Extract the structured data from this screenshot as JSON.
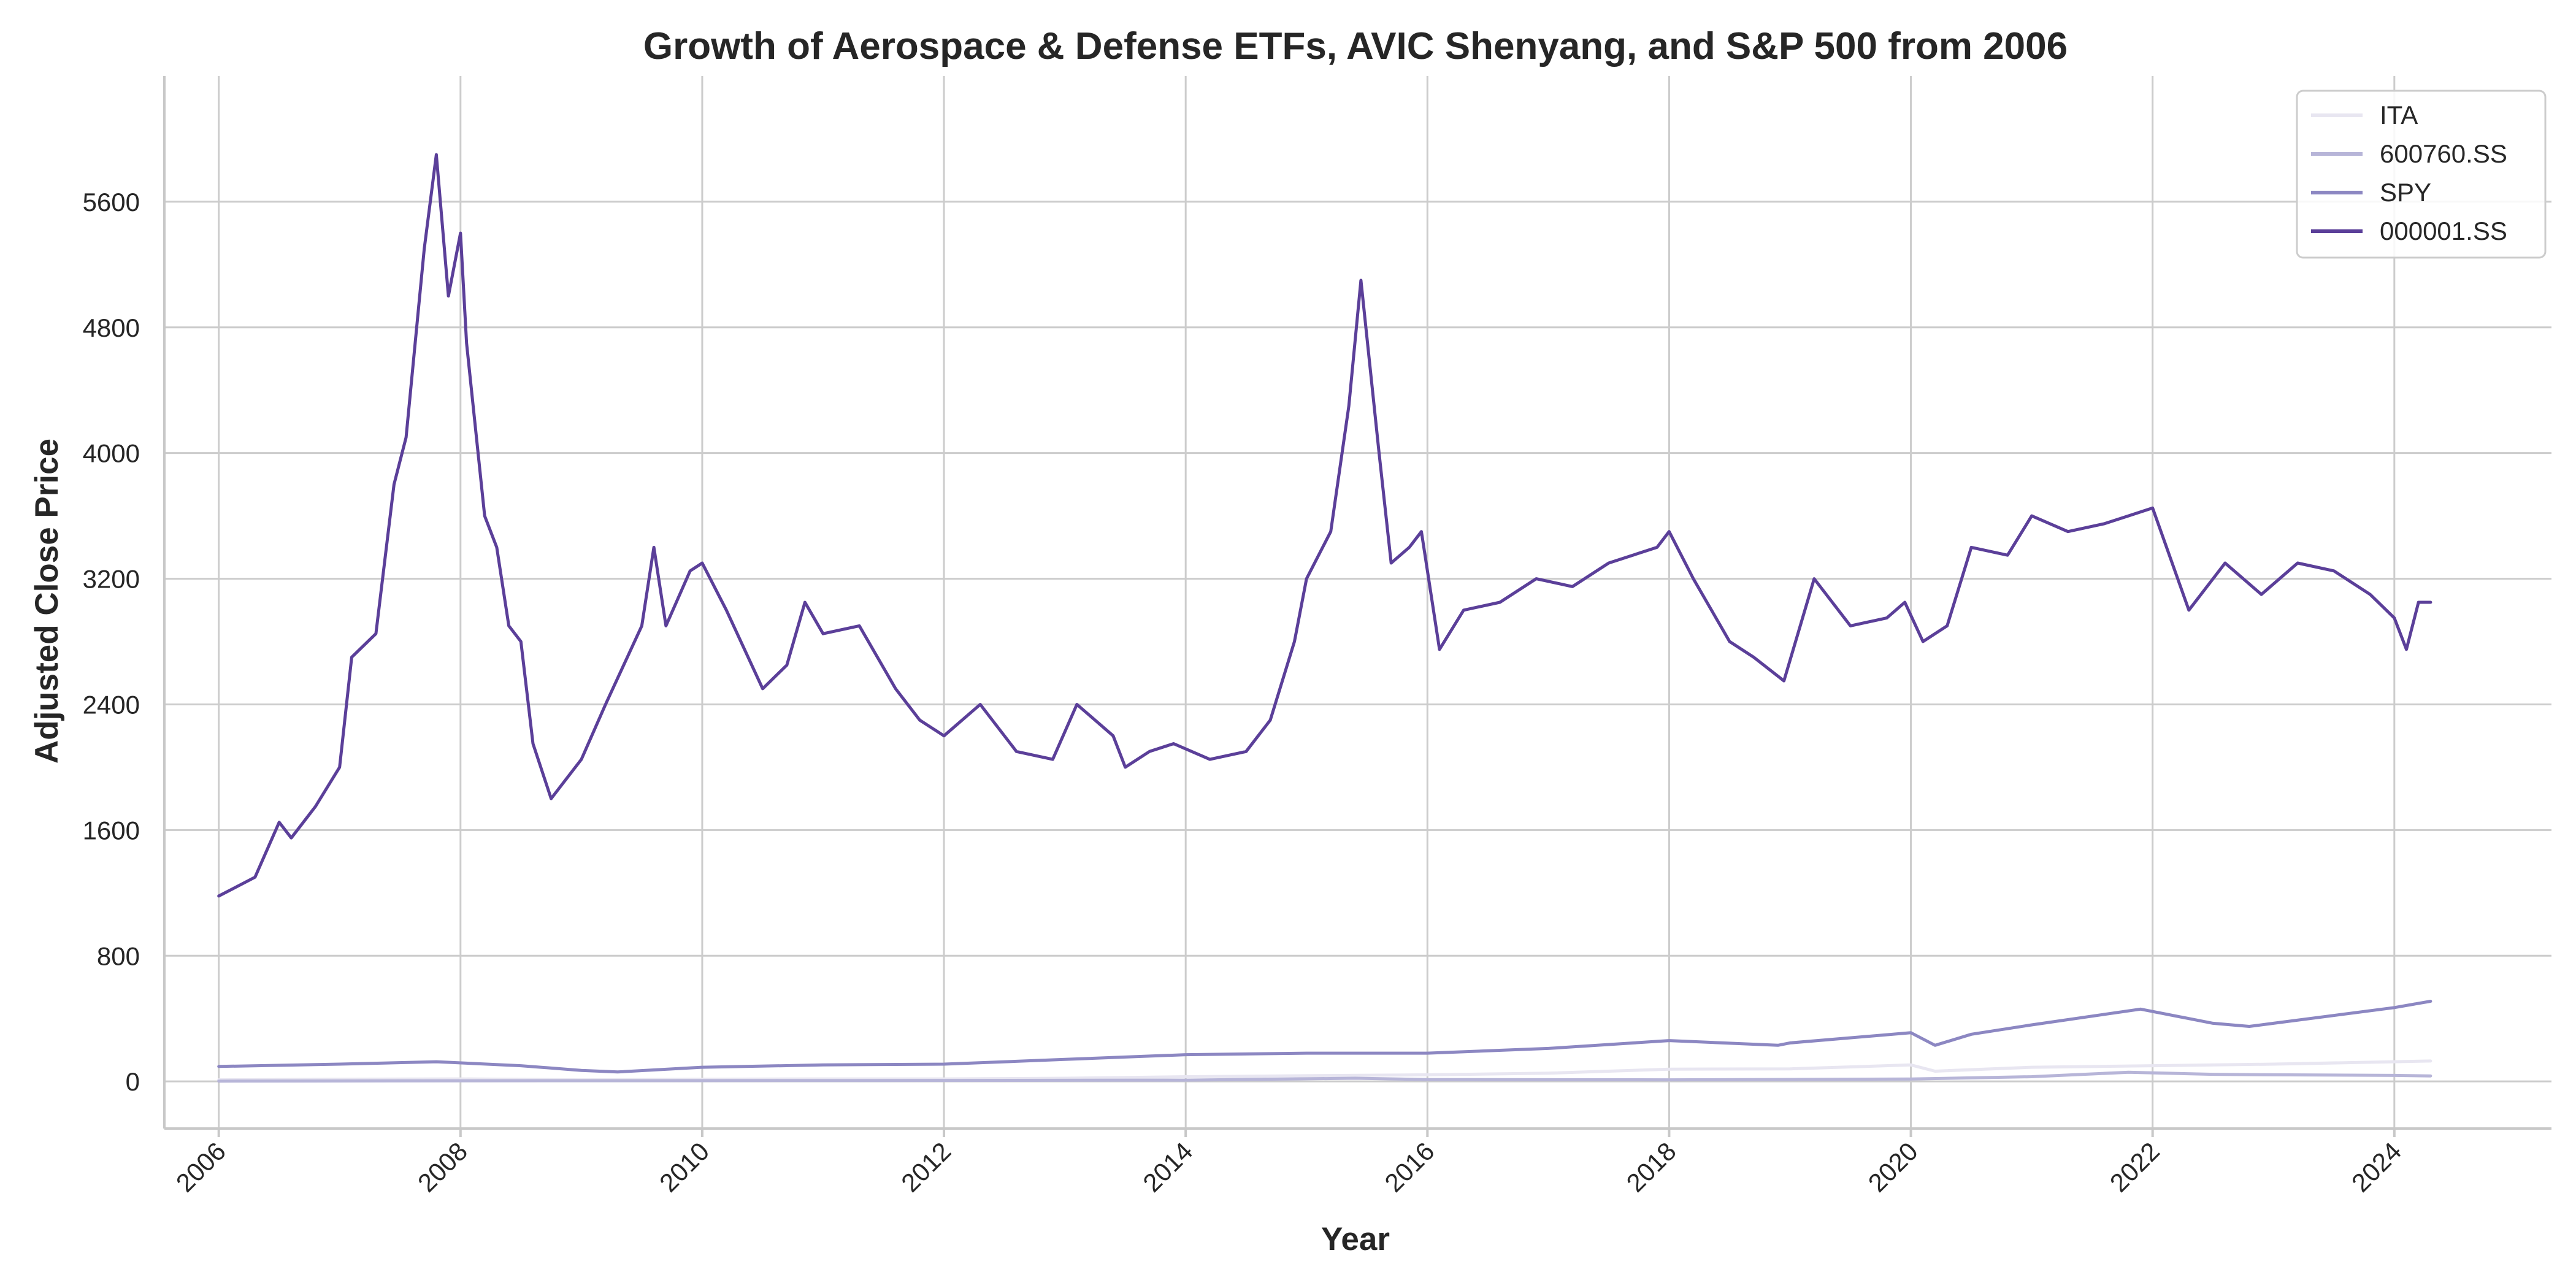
{
  "chart_data": {
    "type": "line",
    "title": "Growth of Aerospace & Defense ETFs, AVIC Shenyang, and S&P 500 from 2006",
    "xlabel": "Year",
    "ylabel": "Adjusted Close Price",
    "xlim": [
      2005.55,
      2025.3
    ],
    "ylim": [
      -300,
      6400
    ],
    "xticks": [
      2006,
      2008,
      2010,
      2012,
      2014,
      2016,
      2018,
      2020,
      2022,
      2024
    ],
    "xtick_labels": [
      "2006",
      "2008",
      "2010",
      "2012",
      "2014",
      "2016",
      "2018",
      "2020",
      "2022",
      "2024"
    ],
    "yticks": [
      0,
      800,
      1600,
      2400,
      3200,
      4000,
      4800,
      5600
    ],
    "ytick_labels": [
      "0",
      "800",
      "1600",
      "2400",
      "3200",
      "4000",
      "4800",
      "5600"
    ],
    "grid": true,
    "legend_position": "top-right",
    "series": [
      {
        "name": "ITA",
        "color": "#e8e6f1",
        "x": [
          2006.0,
          2007.0,
          2008.0,
          2009.0,
          2010.0,
          2011.0,
          2012.0,
          2013.0,
          2014.0,
          2015.0,
          2016.0,
          2017.0,
          2018.0,
          2019.0,
          2020.0,
          2020.2,
          2021.0,
          2022.0,
          2023.0,
          2024.0,
          2024.3
        ],
        "y": [
          10,
          14,
          16,
          10,
          14,
          16,
          16,
          20,
          30,
          36,
          42,
          52,
          78,
          80,
          105,
          65,
          90,
          100,
          110,
          125,
          130
        ]
      },
      {
        "name": "600760.SS",
        "color": "#b7b5d8",
        "x": [
          2006.0,
          2008.0,
          2010.0,
          2012.0,
          2014.0,
          2015.4,
          2016.0,
          2018.0,
          2020.0,
          2021.0,
          2021.8,
          2022.5,
          2023.0,
          2024.0,
          2024.3
        ],
        "y": [
          2,
          4,
          5,
          6,
          8,
          20,
          12,
          10,
          15,
          30,
          58,
          45,
          42,
          38,
          35
        ]
      },
      {
        "name": "SPY",
        "color": "#8c87c2",
        "x": [
          2006.0,
          2007.0,
          2007.8,
          2008.5,
          2009.0,
          2009.3,
          2010.0,
          2011.0,
          2012.0,
          2013.0,
          2014.0,
          2015.0,
          2016.0,
          2017.0,
          2018.0,
          2018.9,
          2019.0,
          2020.0,
          2020.2,
          2020.5,
          2021.0,
          2021.9,
          2022.5,
          2022.8,
          2023.0,
          2024.0,
          2024.3
        ],
        "y": [
          95,
          110,
          125,
          100,
          70,
          60,
          90,
          105,
          110,
          140,
          170,
          180,
          180,
          210,
          260,
          230,
          245,
          310,
          230,
          300,
          360,
          460,
          370,
          350,
          370,
          470,
          510
        ]
      },
      {
        "name": "000001.SS",
        "color": "#5b3f99",
        "x": [
          2006.0,
          2006.3,
          2006.5,
          2006.6,
          2006.8,
          2007.0,
          2007.1,
          2007.3,
          2007.45,
          2007.55,
          2007.7,
          2007.8,
          2007.9,
          2008.0,
          2008.05,
          2008.2,
          2008.3,
          2008.4,
          2008.5,
          2008.6,
          2008.75,
          2008.85,
          2009.0,
          2009.2,
          2009.5,
          2009.6,
          2009.7,
          2009.9,
          2010.0,
          2010.2,
          2010.5,
          2010.7,
          2010.85,
          2011.0,
          2011.3,
          2011.6,
          2011.8,
          2012.0,
          2012.3,
          2012.6,
          2012.9,
          2013.1,
          2013.4,
          2013.5,
          2013.7,
          2013.9,
          2014.2,
          2014.5,
          2014.7,
          2014.9,
          2015.0,
          2015.2,
          2015.35,
          2015.45,
          2015.6,
          2015.7,
          2015.85,
          2015.95,
          2016.1,
          2016.3,
          2016.6,
          2016.9,
          2017.2,
          2017.5,
          2017.9,
          2018.0,
          2018.2,
          2018.5,
          2018.7,
          2018.95,
          2019.2,
          2019.5,
          2019.8,
          2019.95,
          2020.1,
          2020.3,
          2020.5,
          2020.8,
          2021.0,
          2021.3,
          2021.6,
          2021.8,
          2022.0,
          2022.3,
          2022.6,
          2022.9,
          2023.2,
          2023.5,
          2023.8,
          2024.0,
          2024.1,
          2024.2,
          2024.3
        ],
        "y": [
          1180,
          1300,
          1650,
          1550,
          1750,
          2000,
          2700,
          2850,
          3800,
          4100,
          5300,
          5900,
          5000,
          5400,
          4700,
          3600,
          3400,
          2900,
          2800,
          2150,
          1800,
          1900,
          2050,
          2400,
          2900,
          3400,
          2900,
          3250,
          3300,
          3000,
          2500,
          2650,
          3050,
          2850,
          2900,
          2500,
          2300,
          2200,
          2400,
          2100,
          2050,
          2400,
          2200,
          2000,
          2100,
          2150,
          2050,
          2100,
          2300,
          2800,
          3200,
          3500,
          4300,
          5100,
          4000,
          3300,
          3400,
          3500,
          2750,
          3000,
          3050,
          3200,
          3150,
          3300,
          3400,
          3500,
          3200,
          2800,
          2700,
          2550,
          3200,
          2900,
          2950,
          3050,
          2800,
          2900,
          3400,
          3350,
          3600,
          3500,
          3550,
          3600,
          3650,
          3000,
          3300,
          3100,
          3300,
          3250,
          3100,
          2950,
          2750,
          3050,
          3050
        ]
      }
    ]
  }
}
